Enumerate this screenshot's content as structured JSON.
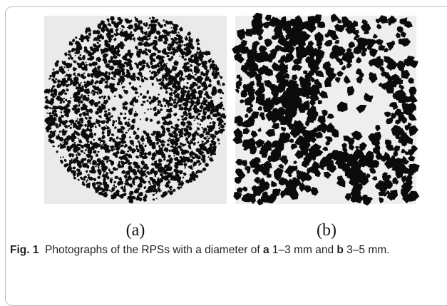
{
  "figure": {
    "panels": [
      {
        "label": "(a)"
      },
      {
        "label": "(b)"
      }
    ],
    "caption": {
      "label": "Fig. 1",
      "parts": [
        "Photographs of the RPSs with a diameter of ",
        "a",
        " 1–3 mm and ",
        "b",
        " 3–5 mm."
      ]
    }
  }
}
